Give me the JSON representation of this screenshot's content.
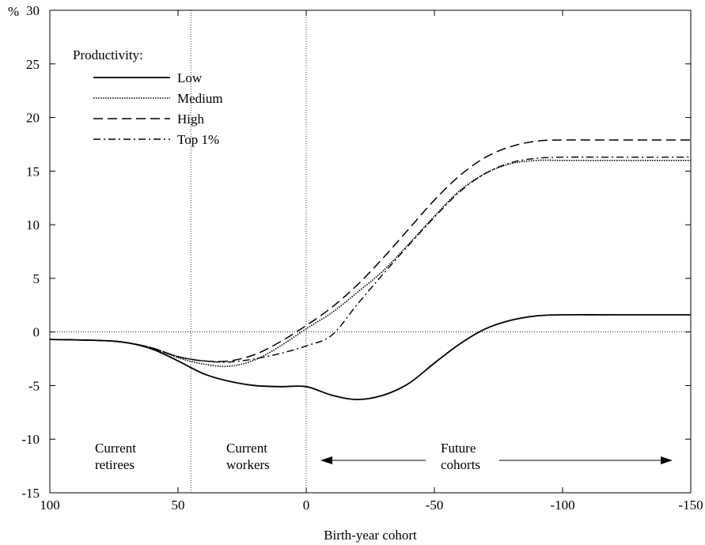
{
  "chart_data": {
    "type": "line",
    "title": "",
    "xlabel": "Birth-year cohort",
    "ylabel": "",
    "y_unit_label": "%",
    "xlim": [
      100,
      -150
    ],
    "ylim": [
      -15,
      30
    ],
    "x_ticks": [
      100,
      50,
      0,
      -50,
      -100,
      -150
    ],
    "x_tick_labels": [
      "100",
      "50",
      "0",
      "-50",
      "-100",
      "-150"
    ],
    "y_ticks": [
      -15,
      -10,
      -5,
      0,
      5,
      10,
      15,
      20,
      25,
      30
    ],
    "y_tick_labels": [
      "-15",
      "-10",
      "-5",
      "0",
      "5",
      "10",
      "15",
      "20",
      "25",
      "30"
    ],
    "grid": false,
    "reference_lines": {
      "x": [
        0,
        45
      ],
      "y": [
        0
      ]
    },
    "legend": {
      "title": "Productivity:",
      "placement": "top-left",
      "entries": [
        "Low",
        "Medium",
        "High",
        "Top 1%"
      ]
    },
    "annotations": {
      "current_retirees": [
        "Current",
        "retirees"
      ],
      "current_workers": [
        "Current",
        "workers"
      ],
      "future_cohorts": [
        "Future",
        "cohorts"
      ]
    },
    "series": [
      {
        "name": "Low",
        "style": "solid",
        "x": [
          100,
          80,
          70,
          60,
          50,
          40,
          30,
          20,
          10,
          0,
          -10,
          -20,
          -30,
          -40,
          -50,
          -60,
          -70,
          -80,
          -90,
          -100,
          -120,
          -150
        ],
        "y": [
          -0.7,
          -0.8,
          -1.0,
          -1.6,
          -2.7,
          -3.9,
          -4.6,
          -5.0,
          -5.1,
          -5.1,
          -5.9,
          -6.3,
          -5.9,
          -4.8,
          -2.9,
          -1.1,
          0.3,
          1.1,
          1.5,
          1.6,
          1.6,
          1.6
        ]
      },
      {
        "name": "Medium",
        "style": "dotted",
        "x": [
          100,
          80,
          70,
          60,
          50,
          40,
          30,
          20,
          10,
          0,
          -10,
          -20,
          -30,
          -40,
          -50,
          -60,
          -70,
          -80,
          -90,
          -100,
          -120,
          -150
        ],
        "y": [
          -0.7,
          -0.8,
          -1.0,
          -1.5,
          -2.4,
          -3.0,
          -3.2,
          -2.6,
          -1.3,
          0.3,
          1.8,
          3.7,
          5.7,
          8.2,
          10.8,
          13.2,
          14.8,
          15.7,
          16.0,
          16.0,
          16.0,
          16.0
        ]
      },
      {
        "name": "High",
        "style": "dashed",
        "x": [
          100,
          80,
          70,
          60,
          50,
          40,
          30,
          20,
          10,
          0,
          -10,
          -20,
          -30,
          -40,
          -50,
          -60,
          -70,
          -80,
          -90,
          -100,
          -120,
          -150
        ],
        "y": [
          -0.7,
          -0.8,
          -1.0,
          -1.5,
          -2.3,
          -2.7,
          -2.7,
          -2.1,
          -0.9,
          0.6,
          2.3,
          4.4,
          6.9,
          9.6,
          12.3,
          14.6,
          16.3,
          17.3,
          17.8,
          17.9,
          17.9,
          17.9
        ]
      },
      {
        "name": "Top 1%",
        "style": "dash-dot",
        "x": [
          100,
          80,
          70,
          60,
          50,
          40,
          30,
          20,
          10,
          0,
          -10,
          -20,
          -30,
          -40,
          -50,
          -60,
          -70,
          -80,
          -90,
          -100,
          -120,
          -150
        ],
        "y": [
          -0.7,
          -0.8,
          -1.0,
          -1.5,
          -2.3,
          -2.7,
          -2.8,
          -2.5,
          -2.0,
          -1.3,
          -0.3,
          2.6,
          5.4,
          8.1,
          10.7,
          13.1,
          14.8,
          15.8,
          16.2,
          16.3,
          16.3,
          16.3
        ]
      }
    ]
  }
}
